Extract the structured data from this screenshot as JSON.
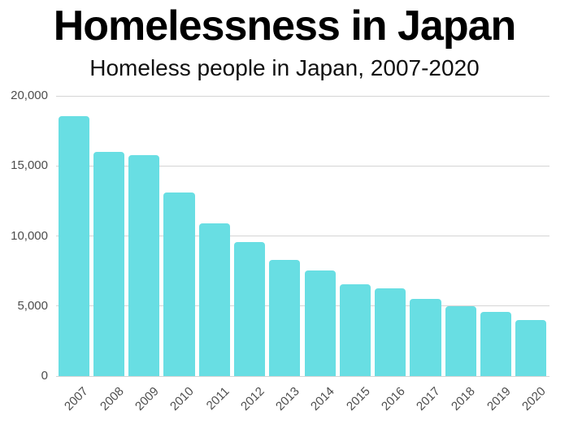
{
  "page": {
    "title": "Homelessness in Japan",
    "subtitle": "Homeless people in Japan, 2007-2020"
  },
  "chart_data": {
    "type": "bar",
    "title": "Homelessness in Japan",
    "subtitle": "Homeless people in Japan, 2007-2020",
    "categories": [
      "2007",
      "2008",
      "2009",
      "2010",
      "2011",
      "2012",
      "2013",
      "2014",
      "2015",
      "2016",
      "2017",
      "2018",
      "2019",
      "2020"
    ],
    "values": [
      18564,
      16018,
      15759,
      13124,
      10890,
      9576,
      8265,
      7508,
      6541,
      6235,
      5534,
      4977,
      4555,
      3992
    ],
    "xlabel": "",
    "ylabel": "",
    "ylim": [
      0,
      20000
    ],
    "yticks": [
      {
        "value": 0,
        "label": "0"
      },
      {
        "value": 5000,
        "label": "5,000"
      },
      {
        "value": 10000,
        "label": "10,000"
      },
      {
        "value": 15000,
        "label": "15,000"
      },
      {
        "value": 20000,
        "label": "20,000"
      }
    ],
    "grid": true,
    "legend": "none",
    "bar_color": "#68dee3",
    "gridline_color": "#d5d5d5",
    "axis_label_color": "#4d4d4d",
    "background_color": "#ffffff"
  }
}
